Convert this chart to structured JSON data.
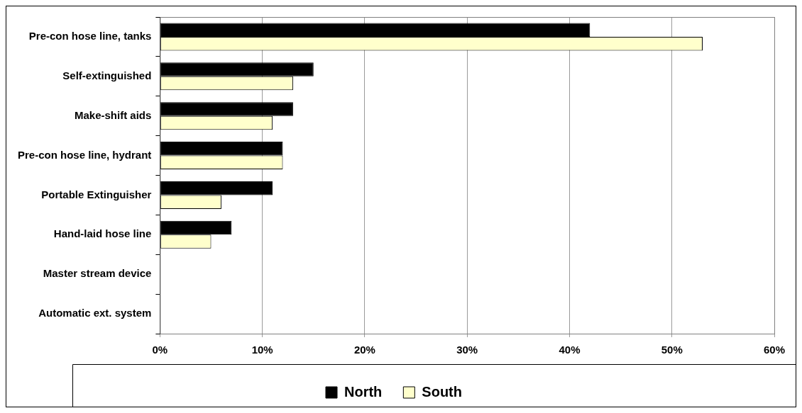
{
  "chart_data": {
    "type": "bar",
    "orientation": "horizontal",
    "categories": [
      "Pre-con hose line, tanks",
      "Self-extinguished",
      "Make-shift aids",
      "Pre-con hose line, hydrant",
      "Portable Extinguisher",
      "Hand-laid hose line",
      "Master stream device",
      "Automatic ext. system"
    ],
    "series": [
      {
        "name": "North",
        "color": "#000000",
        "values": [
          42,
          15,
          13,
          12,
          11,
          7,
          0,
          0
        ]
      },
      {
        "name": "South",
        "color": "#ffffcc",
        "values": [
          53,
          13,
          11,
          12,
          6,
          5,
          0,
          0
        ]
      }
    ],
    "xlim": [
      0,
      60
    ],
    "xticks": [
      {
        "value": 0,
        "label": "0%"
      },
      {
        "value": 10,
        "label": "10%"
      },
      {
        "value": 20,
        "label": "20%"
      },
      {
        "value": 30,
        "label": "30%"
      },
      {
        "value": 40,
        "label": "40%"
      },
      {
        "value": 50,
        "label": "50%"
      },
      {
        "value": 60,
        "label": "60%"
      }
    ],
    "grid": "x",
    "legend": "bottom"
  }
}
